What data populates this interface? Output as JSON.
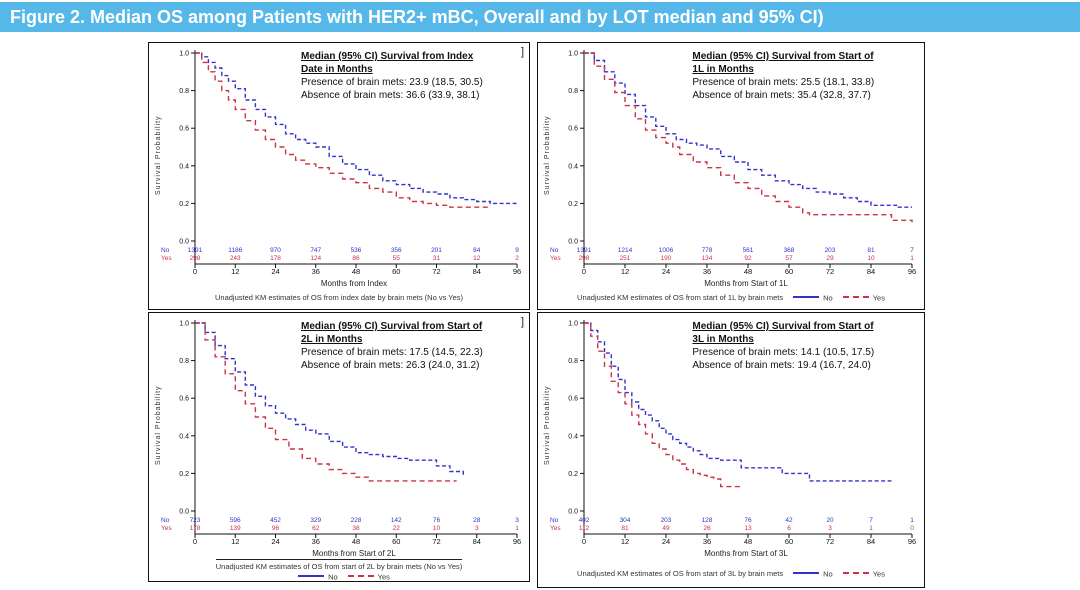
{
  "header": {
    "title": "Figure 2. Median OS among Patients with HER2+ mBC, Overall and by LOT median and 95% CI)",
    "bg_color": "#56b7e9",
    "text_color": "#ffffff"
  },
  "artifact_bracket": "]",
  "legend": {
    "no_label": "No",
    "yes_label": "Yes"
  },
  "colors": {
    "no_series": "#3333cc",
    "yes_series": "#cc3344"
  },
  "chart_data": [
    {
      "type": "line",
      "title1": "Median (95% CI) Survival from Index",
      "title2": "Date in Months",
      "presence": "Presence of brain mets: 23.9 (18.5, 30.5)",
      "absence": "Absence of brain mets: 36.6 (33.9, 38.1)",
      "median_presence": 23.9,
      "ci_presence": [
        18.5,
        30.5
      ],
      "median_absence": 36.6,
      "ci_absence": [
        33.9,
        38.1
      ],
      "xlabel": "Months from Index",
      "ylabel": "Survival Probability",
      "xticks": [
        0,
        12,
        24,
        36,
        48,
        60,
        72,
        84,
        96
      ],
      "yticks": [
        "1.0",
        "0.8",
        "0.6",
        "0.4",
        "0.2",
        "0.0"
      ],
      "xlim": [
        0,
        96
      ],
      "ylim": [
        0,
        1
      ],
      "caption": "Unadjusted KM estimates of OS from index date by brain mets (No vs Yes)",
      "series": [
        {
          "name": "No",
          "color": "#3333cc",
          "dash": "4 2.5",
          "points": [
            [
              0,
              1.0
            ],
            [
              2,
              0.98
            ],
            [
              4,
              0.95
            ],
            [
              6,
              0.92
            ],
            [
              8,
              0.88
            ],
            [
              10,
              0.85
            ],
            [
              12,
              0.81
            ],
            [
              15,
              0.75
            ],
            [
              18,
              0.7
            ],
            [
              21,
              0.66
            ],
            [
              24,
              0.62
            ],
            [
              27,
              0.57
            ],
            [
              30,
              0.54
            ],
            [
              33,
              0.52
            ],
            [
              36,
              0.5
            ],
            [
              40,
              0.45
            ],
            [
              44,
              0.41
            ],
            [
              48,
              0.38
            ],
            [
              52,
              0.35
            ],
            [
              56,
              0.32
            ],
            [
              60,
              0.3
            ],
            [
              64,
              0.28
            ],
            [
              68,
              0.26
            ],
            [
              72,
              0.25
            ],
            [
              76,
              0.23
            ],
            [
              80,
              0.22
            ],
            [
              84,
              0.21
            ],
            [
              88,
              0.2
            ],
            [
              96,
              0.19
            ]
          ]
        },
        {
          "name": "Yes",
          "color": "#cc3344",
          "dash": "5 3.5",
          "points": [
            [
              0,
              1.0
            ],
            [
              2,
              0.95
            ],
            [
              4,
              0.9
            ],
            [
              6,
              0.85
            ],
            [
              8,
              0.8
            ],
            [
              10,
              0.75
            ],
            [
              12,
              0.7
            ],
            [
              15,
              0.64
            ],
            [
              18,
              0.59
            ],
            [
              21,
              0.54
            ],
            [
              24,
              0.5
            ],
            [
              27,
              0.46
            ],
            [
              30,
              0.43
            ],
            [
              33,
              0.41
            ],
            [
              36,
              0.39
            ],
            [
              40,
              0.36
            ],
            [
              44,
              0.33
            ],
            [
              48,
              0.31
            ],
            [
              52,
              0.28
            ],
            [
              56,
              0.26
            ],
            [
              60,
              0.23
            ],
            [
              64,
              0.21
            ],
            [
              68,
              0.2
            ],
            [
              72,
              0.19
            ],
            [
              76,
              0.18
            ],
            [
              88,
              0.18
            ]
          ]
        }
      ],
      "at_risk_no": [
        "1391",
        "1186",
        "970",
        "747",
        "536",
        "356",
        "201",
        "84",
        "9"
      ],
      "at_risk_yes": [
        "298",
        "243",
        "178",
        "124",
        "86",
        "55",
        "31",
        "12",
        "2"
      ]
    },
    {
      "type": "line",
      "title1": "Median (95% CI) Survival from Start of",
      "title2": "1L in Months",
      "presence": "Presence of brain mets: 25.5 (18.1, 33.8)",
      "absence": "Absence of brain mets: 35.4 (32.8, 37.7)",
      "median_presence": 25.5,
      "ci_presence": [
        18.1,
        33.8
      ],
      "median_absence": 35.4,
      "ci_absence": [
        32.8,
        37.7
      ],
      "xlabel": "Months from Start of 1L",
      "ylabel": "Survival Probability",
      "xticks": [
        0,
        12,
        24,
        36,
        48,
        60,
        72,
        84,
        96
      ],
      "yticks": [
        "1.0",
        "0.8",
        "0.6",
        "0.4",
        "0.2",
        "0.0"
      ],
      "xlim": [
        0,
        96
      ],
      "ylim": [
        0,
        1
      ],
      "caption": "Unadjusted KM estimates of OS from start of 1L by brain mets",
      "series": [
        {
          "name": "No",
          "color": "#3333cc",
          "dash": "4 2.5",
          "points": [
            [
              0,
              1.0
            ],
            [
              3,
              0.96
            ],
            [
              6,
              0.9
            ],
            [
              9,
              0.84
            ],
            [
              12,
              0.78
            ],
            [
              15,
              0.72
            ],
            [
              18,
              0.66
            ],
            [
              21,
              0.61
            ],
            [
              24,
              0.57
            ],
            [
              27,
              0.54
            ],
            [
              30,
              0.52
            ],
            [
              33,
              0.51
            ],
            [
              36,
              0.49
            ],
            [
              40,
              0.45
            ],
            [
              44,
              0.42
            ],
            [
              48,
              0.38
            ],
            [
              52,
              0.35
            ],
            [
              56,
              0.32
            ],
            [
              60,
              0.3
            ],
            [
              64,
              0.28
            ],
            [
              68,
              0.26
            ],
            [
              72,
              0.25
            ],
            [
              76,
              0.23
            ],
            [
              80,
              0.21
            ],
            [
              84,
              0.19
            ],
            [
              92,
              0.18
            ],
            [
              96,
              0.18
            ]
          ]
        },
        {
          "name": "Yes",
          "color": "#cc3344",
          "dash": "5 3.5",
          "points": [
            [
              0,
              1.0
            ],
            [
              3,
              0.93
            ],
            [
              6,
              0.86
            ],
            [
              9,
              0.79
            ],
            [
              12,
              0.72
            ],
            [
              15,
              0.65
            ],
            [
              18,
              0.59
            ],
            [
              21,
              0.55
            ],
            [
              24,
              0.52
            ],
            [
              26,
              0.5
            ],
            [
              28,
              0.46
            ],
            [
              32,
              0.42
            ],
            [
              36,
              0.39
            ],
            [
              40,
              0.35
            ],
            [
              44,
              0.31
            ],
            [
              48,
              0.28
            ],
            [
              52,
              0.24
            ],
            [
              56,
              0.21
            ],
            [
              60,
              0.18
            ],
            [
              64,
              0.15
            ],
            [
              66,
              0.14
            ],
            [
              88,
              0.14
            ],
            [
              90,
              0.11
            ],
            [
              96,
              0.1
            ]
          ]
        }
      ],
      "at_risk_no": [
        "1391",
        "1214",
        "1006",
        "778",
        "561",
        "368",
        "203",
        "81",
        "7"
      ],
      "at_risk_yes": [
        "298",
        "251",
        "190",
        "134",
        "92",
        "57",
        "29",
        "10",
        "1"
      ]
    },
    {
      "type": "line",
      "title1": "Median (95% CI) Survival from Start of",
      "title2": "2L in Months",
      "presence": "Presence of brain mets: 17.5 (14.5, 22.3)",
      "absence": "Absence of brain mets: 26.3 (24.0, 31.2)",
      "median_presence": 17.5,
      "ci_presence": [
        14.5,
        22.3
      ],
      "median_absence": 26.3,
      "ci_absence": [
        24.0,
        31.2
      ],
      "xlabel": "Months from Start of 2L",
      "ylabel": "Survival Probability",
      "xticks": [
        0,
        12,
        24,
        36,
        48,
        60,
        72,
        84,
        96
      ],
      "yticks": [
        "1.0",
        "0.8",
        "0.6",
        "0.4",
        "0.2",
        "0.0"
      ],
      "xlim": [
        0,
        96
      ],
      "ylim": [
        0,
        1
      ],
      "caption": "Unadjusted KM estimates of OS from start of 2L by brain mets (No vs Yes)",
      "series": [
        {
          "name": "No",
          "color": "#3333cc",
          "dash": "4 2.5",
          "points": [
            [
              0,
              1.0
            ],
            [
              3,
              0.95
            ],
            [
              6,
              0.88
            ],
            [
              9,
              0.81
            ],
            [
              12,
              0.74
            ],
            [
              15,
              0.67
            ],
            [
              18,
              0.61
            ],
            [
              21,
              0.56
            ],
            [
              24,
              0.52
            ],
            [
              27,
              0.49
            ],
            [
              30,
              0.46
            ],
            [
              33,
              0.43
            ],
            [
              36,
              0.41
            ],
            [
              40,
              0.37
            ],
            [
              44,
              0.34
            ],
            [
              48,
              0.31
            ],
            [
              52,
              0.3
            ],
            [
              56,
              0.29
            ],
            [
              60,
              0.28
            ],
            [
              64,
              0.27
            ],
            [
              68,
              0.27
            ],
            [
              72,
              0.24
            ],
            [
              76,
              0.21
            ],
            [
              80,
              0.19
            ]
          ]
        },
        {
          "name": "Yes",
          "color": "#cc3344",
          "dash": "5 3.5",
          "points": [
            [
              0,
              1.0
            ],
            [
              3,
              0.91
            ],
            [
              6,
              0.82
            ],
            [
              9,
              0.73
            ],
            [
              12,
              0.64
            ],
            [
              15,
              0.57
            ],
            [
              18,
              0.5
            ],
            [
              21,
              0.44
            ],
            [
              24,
              0.38
            ],
            [
              28,
              0.33
            ],
            [
              32,
              0.28
            ],
            [
              36,
              0.25
            ],
            [
              40,
              0.22
            ],
            [
              44,
              0.2
            ],
            [
              48,
              0.18
            ],
            [
              52,
              0.16
            ],
            [
              78,
              0.16
            ]
          ]
        }
      ],
      "at_risk_no": [
        "723",
        "596",
        "452",
        "329",
        "228",
        "142",
        "76",
        "28",
        "3"
      ],
      "at_risk_yes": [
        "178",
        "139",
        "96",
        "62",
        "38",
        "22",
        "10",
        "3",
        "1"
      ]
    },
    {
      "type": "line",
      "title1": "Median (95% CI) Survival from Start of",
      "title2": "3L in Months",
      "presence": "Presence of brain mets: 14.1 (10.5, 17.5)",
      "absence": "Absence of brain mets: 19.4 (16.7, 24.0)",
      "median_presence": 14.1,
      "ci_presence": [
        10.5,
        17.5
      ],
      "median_absence": 19.4,
      "ci_absence": [
        16.7,
        24.0
      ],
      "xlabel": "Months from Start of 3L",
      "ylabel": "Survival Probability",
      "xticks": [
        0,
        12,
        24,
        36,
        48,
        60,
        72,
        84,
        96
      ],
      "yticks": [
        "1.0",
        "0.8",
        "0.6",
        "0.4",
        "0.2",
        "0.0"
      ],
      "xlim": [
        0,
        96
      ],
      "ylim": [
        0,
        1
      ],
      "caption": "Unadjusted KM estimates of OS from start of 3L by brain mets",
      "series": [
        {
          "name": "No",
          "color": "#3333cc",
          "dash": "4 2.5",
          "points": [
            [
              0,
              1.0
            ],
            [
              2,
              0.96
            ],
            [
              4,
              0.9
            ],
            [
              6,
              0.84
            ],
            [
              8,
              0.77
            ],
            [
              10,
              0.7
            ],
            [
              12,
              0.63
            ],
            [
              14,
              0.58
            ],
            [
              16,
              0.54
            ],
            [
              18,
              0.51
            ],
            [
              20,
              0.48
            ],
            [
              22,
              0.44
            ],
            [
              24,
              0.41
            ],
            [
              26,
              0.38
            ],
            [
              28,
              0.36
            ],
            [
              30,
              0.34
            ],
            [
              32,
              0.32
            ],
            [
              34,
              0.3
            ],
            [
              36,
              0.28
            ],
            [
              40,
              0.27
            ],
            [
              46,
              0.23
            ],
            [
              58,
              0.2
            ],
            [
              66,
              0.16
            ],
            [
              90,
              0.16
            ]
          ]
        },
        {
          "name": "Yes",
          "color": "#cc3344",
          "dash": "5 3.5",
          "points": [
            [
              0,
              1.0
            ],
            [
              2,
              0.93
            ],
            [
              4,
              0.85
            ],
            [
              6,
              0.77
            ],
            [
              8,
              0.69
            ],
            [
              10,
              0.63
            ],
            [
              12,
              0.57
            ],
            [
              14,
              0.51
            ],
            [
              16,
              0.46
            ],
            [
              18,
              0.41
            ],
            [
              20,
              0.36
            ],
            [
              22,
              0.33
            ],
            [
              24,
              0.3
            ],
            [
              26,
              0.27
            ],
            [
              28,
              0.25
            ],
            [
              30,
              0.22
            ],
            [
              32,
              0.2
            ],
            [
              34,
              0.19
            ],
            [
              36,
              0.18
            ],
            [
              38,
              0.17
            ],
            [
              40,
              0.13
            ],
            [
              46,
              0.12
            ]
          ]
        }
      ],
      "at_risk_no": [
        "402",
        "304",
        "203",
        "128",
        "76",
        "42",
        "20",
        "7",
        "1"
      ],
      "at_risk_yes": [
        "112",
        "81",
        "49",
        "26",
        "13",
        "6",
        "3",
        "1",
        "0"
      ]
    }
  ]
}
